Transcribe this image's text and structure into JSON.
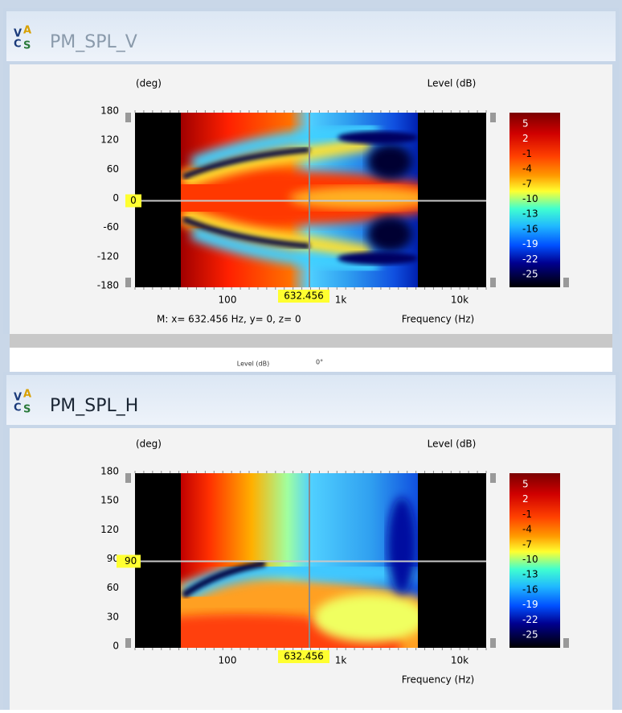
{
  "windows": [
    {
      "title": "PM_SPL_V",
      "logo": [
        "V",
        "A",
        "C",
        "S"
      ],
      "plot": {
        "y_axis_label": "(deg)",
        "colorbar_label": "Level (dB)",
        "y_ticks": [
          "180",
          "120",
          "60",
          "0",
          "-60",
          "-120",
          "-180"
        ],
        "x_ticks": [
          "100",
          "1k",
          "10k"
        ],
        "cursor_y": "0",
        "cursor_x": "632.456",
        "colorbar_ticks": [
          "5",
          "2",
          "-1",
          "-4",
          "-7",
          "-10",
          "-13",
          "-16",
          "-19",
          "-22",
          "-25"
        ],
        "status": "M:  x= 632.456 Hz,  y= 0,  z= 0",
        "x_axis_label": "Frequency (Hz)"
      }
    },
    {
      "title": "PM_SPL_H",
      "logo": [
        "V",
        "A",
        "C",
        "S"
      ],
      "plot": {
        "y_axis_label": "(deg)",
        "colorbar_label": "Level (dB)",
        "y_ticks": [
          "180",
          "150",
          "120",
          "90",
          "60",
          "30",
          "0"
        ],
        "x_ticks": [
          "100",
          "1k",
          "10k"
        ],
        "cursor_y": "90",
        "cursor_x": "632.456",
        "colorbar_ticks": [
          "5",
          "2",
          "-1",
          "-4",
          "-7",
          "-10",
          "-13",
          "-16",
          "-19",
          "-22",
          "-25"
        ],
        "x_axis_label": "Frequency (Hz)"
      }
    }
  ],
  "background_window": {
    "texts": [
      "Level (dB)",
      "0°"
    ]
  }
}
